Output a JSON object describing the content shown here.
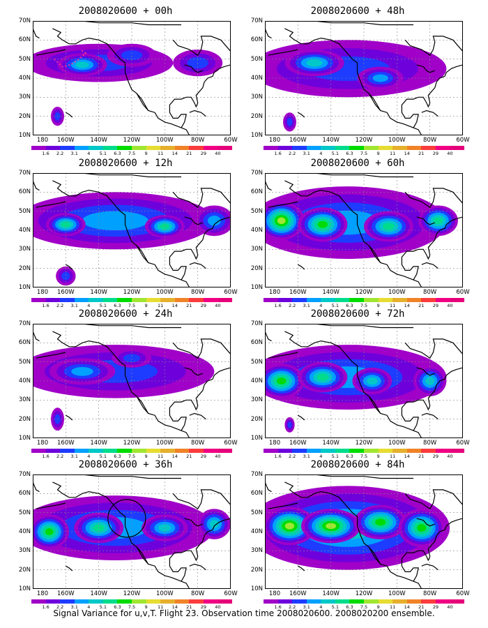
{
  "panels": [
    {
      "title": "2008020600 + 00h",
      "intensity": 0
    },
    {
      "title": "2008020600 + 48h",
      "intensity": 4
    },
    {
      "title": "2008020600 + 12h",
      "intensity": 1
    },
    {
      "title": "2008020600 + 60h",
      "intensity": 5
    },
    {
      "title": "2008020600 + 24h",
      "intensity": 2
    },
    {
      "title": "2008020600 + 72h",
      "intensity": 6
    },
    {
      "title": "2008020600 + 36h",
      "intensity": 3
    },
    {
      "title": "2008020600 + 84h",
      "intensity": 7
    }
  ],
  "lat_labels": [
    "70N",
    "60N",
    "50N",
    "40N",
    "30N",
    "20N",
    "10N"
  ],
  "lon_labels": [
    "180",
    "160W",
    "140W",
    "120W",
    "100W",
    "80W",
    "60W"
  ],
  "colorbar": {
    "labels": [
      "1.6",
      "2.2",
      "3.1",
      "4",
      "5.1",
      "6.3",
      "7.5",
      "9",
      "11",
      "14",
      "21",
      "29",
      "40"
    ],
    "colors": [
      "#a000c8",
      "#6e00dc",
      "#1e3cff",
      "#00a0ff",
      "#00c8c8",
      "#00dc8c",
      "#00dc00",
      "#a0e632",
      "#e6dc32",
      "#e6af2d",
      "#f08228",
      "#fa3c3c",
      "#f00082",
      "#e6007a"
    ]
  },
  "footer": "Signal Variance for u,v,T. Flight 23. Observation time 2008020600. 2008020200 ensemble."
}
